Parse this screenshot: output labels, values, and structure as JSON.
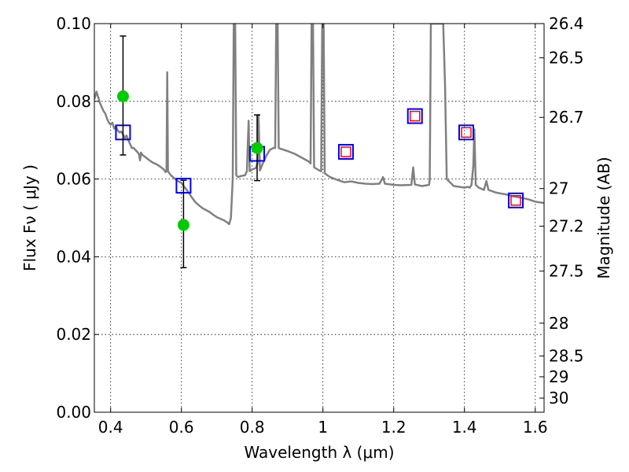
{
  "chart_data": {
    "type": "scatter",
    "title": "",
    "xlabel": "Wavelength  λ (μm)",
    "ylabel": "Flux  Fν  ( μJy )",
    "y2label": "Magnitude (AB)",
    "xlim": [
      0.354,
      1.625
    ],
    "ylim": [
      0.0,
      0.1
    ],
    "grid": true,
    "x_ticks": [
      0.4,
      0.6,
      0.8,
      1.0,
      1.2,
      1.4,
      1.6
    ],
    "x_tick_labels": [
      "0.4",
      "0.6",
      "0.8",
      "1",
      "1.2",
      "1.4",
      "1.6"
    ],
    "y_ticks": [
      0.0,
      0.02,
      0.04,
      0.06,
      0.08,
      0.1
    ],
    "y_tick_labels": [
      "0.00",
      "0.02",
      "0.04",
      "0.06",
      "0.08",
      "0.10"
    ],
    "y2_ticks": [
      {
        "mag": 26.4,
        "label": "26.4"
      },
      {
        "mag": 26.5,
        "label": "26.5"
      },
      {
        "mag": 26.7,
        "label": "26.7"
      },
      {
        "mag": 27.0,
        "label": "27"
      },
      {
        "mag": 27.2,
        "label": "27.2"
      },
      {
        "mag": 27.5,
        "label": "27.5"
      },
      {
        "mag": 28.0,
        "label": "28"
      },
      {
        "mag": 28.5,
        "label": "28.5"
      },
      {
        "mag": 29.0,
        "label": "29"
      },
      {
        "mag": 30.0,
        "label": "30"
      }
    ],
    "colors": {
      "template": "#808080",
      "observed": "#00cc00",
      "errorbar": "#000000",
      "model_outer": "#0000ff",
      "model_inner": "#ff0000"
    },
    "series": [
      {
        "name": "template_spectrum",
        "style": "line",
        "points": [
          [
            0.354,
            0.0805
          ],
          [
            0.36,
            0.0825
          ],
          [
            0.365,
            0.081
          ],
          [
            0.37,
            0.0795
          ],
          [
            0.375,
            0.0785
          ],
          [
            0.38,
            0.0775
          ],
          [
            0.385,
            0.0768
          ],
          [
            0.39,
            0.0755
          ],
          [
            0.395,
            0.0745
          ],
          [
            0.4,
            0.074
          ],
          [
            0.405,
            0.0745
          ],
          [
            0.41,
            0.073
          ],
          [
            0.415,
            0.0735
          ],
          [
            0.42,
            0.0725
          ],
          [
            0.425,
            0.072
          ],
          [
            0.43,
            0.0722
          ],
          [
            0.435,
            0.0715
          ],
          [
            0.44,
            0.0705
          ],
          [
            0.445,
            0.0712
          ],
          [
            0.45,
            0.07
          ],
          [
            0.455,
            0.069
          ],
          [
            0.46,
            0.068
          ],
          [
            0.465,
            0.068
          ],
          [
            0.47,
            0.0675
          ],
          [
            0.475,
            0.067
          ],
          [
            0.48,
            0.0665
          ],
          [
            0.483,
            0.0648
          ],
          [
            0.486,
            0.0668
          ],
          [
            0.49,
            0.0662
          ],
          [
            0.5,
            0.0655
          ],
          [
            0.51,
            0.0648
          ],
          [
            0.52,
            0.0642
          ],
          [
            0.53,
            0.0638
          ],
          [
            0.54,
            0.0632
          ],
          [
            0.55,
            0.0625
          ],
          [
            0.555,
            0.0618
          ],
          [
            0.558,
            0.062
          ],
          [
            0.56,
            0.0875
          ],
          [
            0.562,
            0.062
          ],
          [
            0.57,
            0.061
          ],
          [
            0.58,
            0.0602
          ],
          [
            0.59,
            0.0595
          ],
          [
            0.6,
            0.059
          ],
          [
            0.61,
            0.0578
          ],
          [
            0.62,
            0.0566
          ],
          [
            0.63,
            0.0552
          ],
          [
            0.64,
            0.054
          ],
          [
            0.65,
            0.0532
          ],
          [
            0.66,
            0.0525
          ],
          [
            0.67,
            0.052
          ],
          [
            0.68,
            0.0515
          ],
          [
            0.69,
            0.0508
          ],
          [
            0.7,
            0.0502
          ],
          [
            0.71,
            0.0498
          ],
          [
            0.72,
            0.0494
          ],
          [
            0.73,
            0.0488
          ],
          [
            0.735,
            0.0484
          ],
          [
            0.74,
            0.05
          ],
          [
            0.745,
            0.06
          ],
          [
            0.748,
            0.1
          ],
          [
            0.752,
            0.1
          ],
          [
            0.755,
            0.061
          ],
          [
            0.76,
            0.0605
          ],
          [
            0.77,
            0.0608
          ],
          [
            0.78,
            0.061
          ],
          [
            0.785,
            0.062
          ],
          [
            0.79,
            0.075
          ],
          [
            0.793,
            0.062
          ],
          [
            0.8,
            0.0625
          ],
          [
            0.81,
            0.0628
          ],
          [
            0.815,
            0.064
          ],
          [
            0.818,
            0.0765
          ],
          [
            0.822,
            0.0622
          ],
          [
            0.83,
            0.064
          ],
          [
            0.84,
            0.066
          ],
          [
            0.85,
            0.0675
          ],
          [
            0.86,
            0.068
          ],
          [
            0.865,
            0.068
          ],
          [
            0.868,
            0.1
          ],
          [
            0.872,
            0.1
          ],
          [
            0.875,
            0.068
          ],
          [
            0.88,
            0.0678
          ],
          [
            0.9,
            0.0672
          ],
          [
            0.92,
            0.0665
          ],
          [
            0.94,
            0.0655
          ],
          [
            0.96,
            0.0645
          ],
          [
            0.965,
            0.064
          ],
          [
            0.968,
            0.1
          ],
          [
            0.972,
            0.1
          ],
          [
            0.975,
            0.063
          ],
          [
            0.99,
            0.0622
          ],
          [
            0.995,
            0.062
          ],
          [
            0.998,
            0.1
          ],
          [
            1.002,
            0.1
          ],
          [
            1.005,
            0.0615
          ],
          [
            1.02,
            0.0605
          ],
          [
            1.04,
            0.0598
          ],
          [
            1.06,
            0.0592
          ],
          [
            1.08,
            0.0594
          ],
          [
            1.1,
            0.059
          ],
          [
            1.12,
            0.0588
          ],
          [
            1.14,
            0.0587
          ],
          [
            1.16,
            0.0588
          ],
          [
            1.17,
            0.0605
          ],
          [
            1.175,
            0.0588
          ],
          [
            1.2,
            0.0585
          ],
          [
            1.22,
            0.0584
          ],
          [
            1.25,
            0.0585
          ],
          [
            1.255,
            0.063
          ],
          [
            1.26,
            0.0586
          ],
          [
            1.28,
            0.0582
          ],
          [
            1.3,
            0.0585
          ],
          [
            1.302,
            0.06
          ],
          [
            1.305,
            0.1
          ],
          [
            1.34,
            0.1
          ],
          [
            1.345,
            0.0845
          ],
          [
            1.35,
            0.06
          ],
          [
            1.37,
            0.0582
          ],
          [
            1.4,
            0.0578
          ],
          [
            1.41,
            0.058
          ],
          [
            1.415,
            0.0578
          ],
          [
            1.42,
            0.0585
          ],
          [
            1.425,
            0.0635
          ],
          [
            1.428,
            0.0728
          ],
          [
            1.432,
            0.0585
          ],
          [
            1.44,
            0.0578
          ],
          [
            1.455,
            0.0572
          ],
          [
            1.462,
            0.0595
          ],
          [
            1.468,
            0.0572
          ],
          [
            1.49,
            0.0565
          ],
          [
            1.52,
            0.056
          ],
          [
            1.54,
            0.0555
          ],
          [
            1.56,
            0.0552
          ],
          [
            1.58,
            0.0548
          ],
          [
            1.6,
            0.0542
          ],
          [
            1.625,
            0.0538
          ]
        ]
      },
      {
        "name": "observed",
        "style": "circle",
        "points": [
          {
            "x": 0.435,
            "y": 0.0813,
            "ylo": 0.0662,
            "yhi": 0.0968
          },
          {
            "x": 0.606,
            "y": 0.0482,
            "ylo": 0.0372,
            "yhi": 0.0597
          },
          {
            "x": 0.814,
            "y": 0.068,
            "ylo": 0.0596,
            "yhi": 0.0765
          }
        ]
      },
      {
        "name": "model_photometry",
        "style": "square",
        "points": [
          {
            "x": 0.435,
            "y": 0.072,
            "inner": false
          },
          {
            "x": 0.606,
            "y": 0.0583,
            "inner": false
          },
          {
            "x": 0.814,
            "y": 0.0665,
            "inner": false
          },
          {
            "x": 1.065,
            "y": 0.067,
            "inner": true
          },
          {
            "x": 1.26,
            "y": 0.0762,
            "inner": true
          },
          {
            "x": 1.405,
            "y": 0.072,
            "inner": true
          },
          {
            "x": 1.545,
            "y": 0.0545,
            "inner": true
          }
        ]
      }
    ]
  }
}
